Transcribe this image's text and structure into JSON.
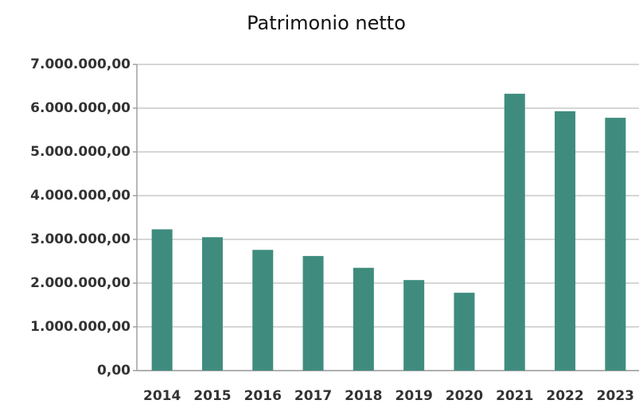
{
  "chart_data": {
    "type": "bar",
    "title": "Patrimonio netto",
    "categories": [
      "2014",
      "2015",
      "2016",
      "2017",
      "2018",
      "2019",
      "2020",
      "2021",
      "2022",
      "2023"
    ],
    "values": [
      3230000,
      3050000,
      2760000,
      2620000,
      2350000,
      2070000,
      1780000,
      6330000,
      5930000,
      5780000
    ],
    "color": "#3f8c7e",
    "ylim": [
      0,
      7000000
    ],
    "yticks": [
      {
        "value": 0,
        "label": "0,00"
      },
      {
        "value": 1000000,
        "label": "1.000.000,00"
      },
      {
        "value": 2000000,
        "label": "2.000.000,00"
      },
      {
        "value": 3000000,
        "label": "3.000.000,00"
      },
      {
        "value": 4000000,
        "label": "4.000.000,00"
      },
      {
        "value": 5000000,
        "label": "5.000.000,00"
      },
      {
        "value": 6000000,
        "label": "6.000.000,00"
      },
      {
        "value": 7000000,
        "label": "7.000.000,00"
      }
    ],
    "grid": true
  }
}
